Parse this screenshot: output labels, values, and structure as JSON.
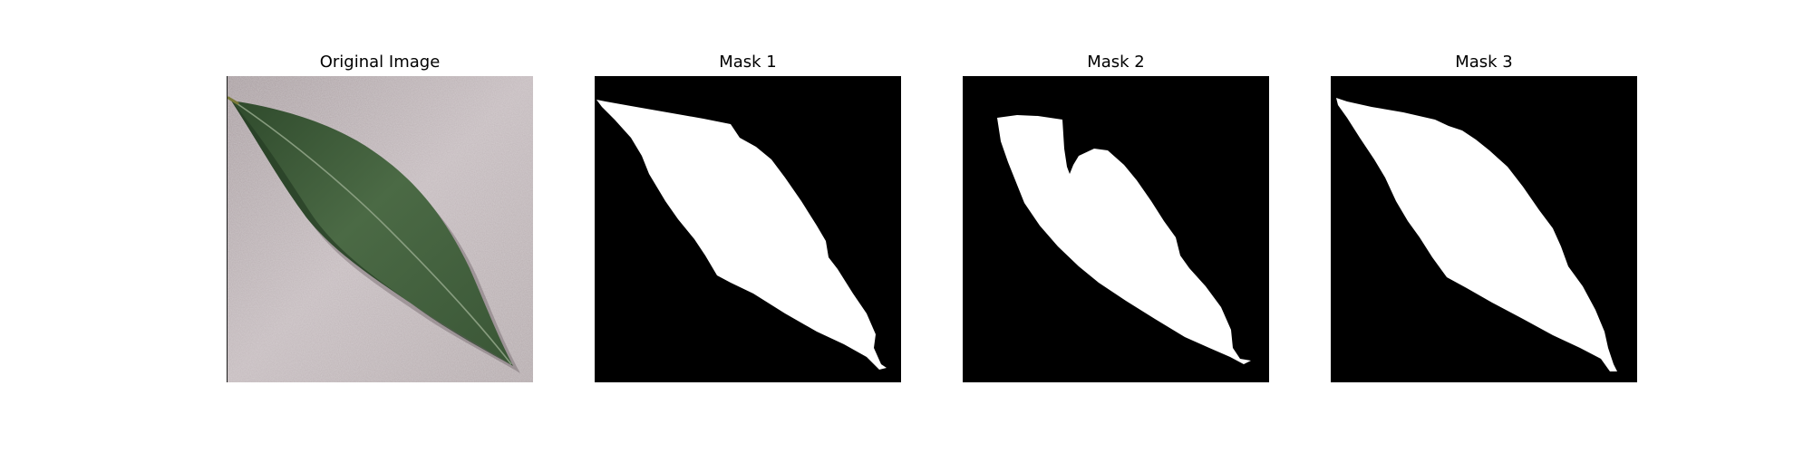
{
  "panels": [
    {
      "title": "Original Image",
      "kind": "photo",
      "icon": "leaf-photo"
    },
    {
      "title": "Mask 1",
      "kind": "mask",
      "icon": "leaf-mask"
    },
    {
      "title": "Mask 2",
      "kind": "mask",
      "icon": "leaf-mask"
    },
    {
      "title": "Mask 3",
      "kind": "mask",
      "icon": "leaf-mask"
    }
  ],
  "colors": {
    "mask_background": "#000000",
    "mask_foreground": "#ffffff",
    "photo_background": "#bdb3b5",
    "leaf_green": "#3f5a3a"
  }
}
